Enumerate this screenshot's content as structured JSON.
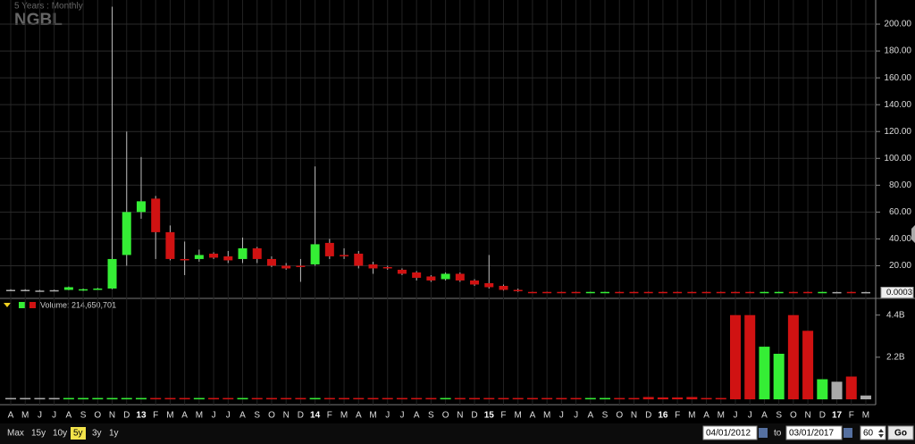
{
  "chart_data": {
    "type": "candlestick",
    "title": "NGBL",
    "subtitle": "5 Years : Monthly",
    "categories": [
      "A",
      "M",
      "J",
      "J",
      "A",
      "S",
      "O",
      "N",
      "D",
      "13",
      "F",
      "M",
      "A",
      "M",
      "J",
      "J",
      "A",
      "S",
      "O",
      "N",
      "D",
      "14",
      "F",
      "M",
      "A",
      "M",
      "J",
      "J",
      "A",
      "S",
      "O",
      "N",
      "D",
      "15",
      "F",
      "M",
      "A",
      "M",
      "J",
      "J",
      "A",
      "S",
      "O",
      "N",
      "D",
      "16",
      "F",
      "M",
      "A",
      "M",
      "J",
      "J",
      "A",
      "S",
      "O",
      "N",
      "D",
      "17",
      "F",
      "M"
    ],
    "open": [
      2,
      2,
      1.5,
      1.8,
      2,
      1.5,
      2.5,
      3,
      28,
      60,
      70,
      45,
      25,
      25,
      29,
      27,
      25,
      33,
      25,
      20,
      20,
      21,
      37,
      28,
      29,
      21,
      19,
      17,
      15,
      12,
      10,
      14,
      9,
      7,
      5,
      2,
      0.5,
      0.5,
      0.5,
      0.5,
      0.3,
      0.3,
      0.5,
      0.5,
      0.5,
      0.5,
      0.5,
      0.5,
      0.5,
      0.5,
      0.5,
      0.5,
      0.3,
      0.3,
      0.5,
      0.5,
      0.3,
      0.4,
      0.5,
      0.4
    ],
    "high": [
      2.5,
      2.5,
      2,
      2.2,
      4.5,
      3,
      3.5,
      213,
      120,
      101,
      72,
      50,
      38,
      32,
      30,
      31,
      41,
      34,
      27,
      22,
      25,
      94,
      40,
      33,
      31,
      23,
      20,
      18,
      16,
      13,
      15,
      15,
      10,
      28,
      6,
      3,
      0.6,
      0.6,
      0.6,
      0.6,
      0.6,
      0.6,
      0.6,
      0.6,
      0.6,
      0.6,
      0.6,
      0.6,
      0.6,
      0.6,
      0.6,
      0.6,
      0.6,
      0.6,
      0.6,
      0.6,
      0.6,
      0.6,
      0.6,
      0.6
    ],
    "low": [
      1.5,
      1.5,
      1,
      1.3,
      1.8,
      1.2,
      2,
      2.5,
      20,
      55,
      25,
      24,
      13,
      23,
      25,
      22,
      22,
      22,
      19,
      17,
      8,
      20,
      25,
      25,
      18,
      14,
      17,
      13,
      9,
      8,
      9,
      8,
      5,
      3,
      1.5,
      0.5,
      0.2,
      0.2,
      0.2,
      0.2,
      0.2,
      0.2,
      0.2,
      0.2,
      0.2,
      0.2,
      0.2,
      0.2,
      0.2,
      0.2,
      0.2,
      0.2,
      0.2,
      0.2,
      0.2,
      0.2,
      0.2,
      0.2,
      0.2,
      0.2
    ],
    "close": [
      2,
      2,
      1.5,
      1.8,
      4,
      2.5,
      3,
      25,
      60,
      68,
      45,
      25,
      24,
      28,
      26,
      24,
      33,
      25,
      20,
      18,
      19,
      36,
      27,
      27,
      20,
      18,
      18,
      14,
      11,
      9,
      14,
      9,
      6,
      4,
      2,
      1,
      0.3,
      0.3,
      0.3,
      0.3,
      0.5,
      0.5,
      0.3,
      0.3,
      0.3,
      0.3,
      0.3,
      0.3,
      0.3,
      0.3,
      0.3,
      0.3,
      0.5,
      0.5,
      0.3,
      0.3,
      0.5,
      0.4,
      0.3,
      0.4
    ],
    "up_color": "#35ee35",
    "down_color": "#d01212",
    "flat_color": "#aaaaaa",
    "ylim": [
      -3,
      218
    ],
    "yticks": [
      {
        "value": 20,
        "label": "20.00"
      },
      {
        "value": 40,
        "label": "40.00"
      },
      {
        "value": 60,
        "label": "60.00"
      },
      {
        "value": 80,
        "label": "80.00"
      },
      {
        "value": 100,
        "label": "100.00"
      },
      {
        "value": 120,
        "label": "120.00"
      },
      {
        "value": 140,
        "label": "140.00"
      },
      {
        "value": 160,
        "label": "160.00"
      },
      {
        "value": 180,
        "label": "180.00"
      },
      {
        "value": 200,
        "label": "200.00"
      }
    ],
    "last_price": 0.0003,
    "grid": true,
    "volume": {
      "label": "Volume: 214,650,701",
      "values": [
        0.02,
        0.02,
        0.02,
        0.02,
        0.02,
        0.02,
        0.02,
        0.02,
        0.02,
        0.02,
        0.02,
        0.02,
        0.02,
        0.02,
        0.02,
        0.02,
        0.02,
        0.02,
        0.02,
        0.02,
        0.02,
        0.02,
        0.02,
        0.02,
        0.02,
        0.02,
        0.02,
        0.02,
        0.02,
        0.02,
        0.02,
        0.02,
        0.02,
        0.02,
        0.02,
        0.02,
        0.02,
        0.02,
        0.02,
        0.02,
        0.06,
        0.04,
        0.03,
        0.04,
        0.12,
        0.1,
        0.1,
        0.12,
        0.07,
        0.07,
        4.4,
        4.4,
        2.75,
        2.38,
        4.4,
        3.58,
        1.05,
        0.92,
        1.19,
        0.2
      ],
      "ylim": [
        0,
        4.9
      ],
      "yticks": [
        {
          "value": 2.2,
          "label": "2.2B"
        },
        {
          "value": 4.4,
          "label": "4.4B"
        }
      ]
    }
  },
  "toolbar": {
    "ranges": [
      "Max",
      "15y",
      "10y",
      "5y",
      "3y",
      "1y"
    ],
    "active_range": "5y",
    "from": "04/01/2012",
    "to_label": "to",
    "to": "03/01/2017",
    "points": "60",
    "go": "Go"
  }
}
